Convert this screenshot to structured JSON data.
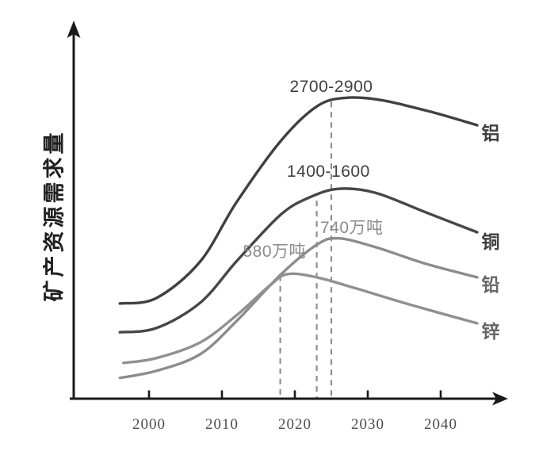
{
  "chart_data": {
    "type": "line",
    "title": "",
    "y_axis_label": "矿产资源需求量",
    "x_ticks": [
      "2000",
      "2010",
      "2020",
      "2030",
      "2040"
    ],
    "x_range": [
      1995.5,
      2046.5
    ],
    "y_range": [
      0,
      105
    ],
    "grid": false,
    "legend_position": "labels-at-curve-ends-right",
    "series": [
      {
        "name": "铝",
        "color": "#404040",
        "label_color": "#3f3f3f",
        "peak_annotation": "2700-2900",
        "points": [
          [
            1996,
            29.8
          ],
          [
            2001,
            31.5
          ],
          [
            2007,
            42.9
          ],
          [
            2012,
            61.5
          ],
          [
            2018,
            80.5
          ],
          [
            2023,
            91.5
          ],
          [
            2027,
            94.2
          ],
          [
            2032,
            93.4
          ],
          [
            2039,
            89.6
          ],
          [
            2045,
            85.6
          ]
        ]
      },
      {
        "name": "铜",
        "color": "#474747",
        "label_color": "#3f3f3f",
        "peak_annotation": "1400-1600",
        "points": [
          [
            1996,
            20.8
          ],
          [
            2001,
            22.1
          ],
          [
            2007,
            30.0
          ],
          [
            2012,
            43.0
          ],
          [
            2018,
            57.5
          ],
          [
            2022,
            63.0
          ],
          [
            2026,
            65.7
          ],
          [
            2031,
            64.5
          ],
          [
            2038,
            58.3
          ],
          [
            2045,
            52.1
          ]
        ]
      },
      {
        "name": "铅",
        "color": "#8c8c8c",
        "label_color": "#666666",
        "peak_annotation": "740万吨",
        "points": [
          [
            1996,
            6.5
          ],
          [
            2001,
            8.7
          ],
          [
            2007,
            13.9
          ],
          [
            2012,
            24.3
          ],
          [
            2018,
            38.7
          ],
          [
            2023,
            48.2
          ],
          [
            2026,
            50.2
          ],
          [
            2031,
            47.5
          ],
          [
            2038,
            42.2
          ],
          [
            2045,
            38.0
          ]
        ]
      },
      {
        "name": "锌",
        "color": "#909090",
        "label_color": "#666666",
        "peak_annotation": "580万吨",
        "points": [
          [
            1996.5,
            11.2
          ],
          [
            2001,
            12.7
          ],
          [
            2007,
            17.6
          ],
          [
            2012,
            26.1
          ],
          [
            2016.5,
            35.3
          ],
          [
            2019,
            39.0
          ],
          [
            2023,
            38.0
          ],
          [
            2028,
            34.8
          ],
          [
            2036,
            29.3
          ],
          [
            2045,
            23.6
          ]
        ]
      }
    ],
    "peak_markers": [
      {
        "year": 2018,
        "top_value": 38.5
      },
      {
        "year": 2023,
        "top_value": 62.0
      },
      {
        "year": 2025,
        "top_value": 93.0
      }
    ],
    "annotations": [
      {
        "text": "2700-2900",
        "year": 2025.0,
        "value": 97.5,
        "color": "#3f3f3f"
      },
      {
        "text": "1400-1600",
        "year": 2024.6,
        "value": 71.0,
        "color": "#3f3f3f"
      },
      {
        "text": "740万吨",
        "year": 2027.8,
        "value": 53.8,
        "color": "#8b8b8b"
      },
      {
        "text": "580万吨",
        "year": 2017.2,
        "value": 46.4,
        "color": "#8b8b8b"
      }
    ],
    "axis_color": "#1a1a1a",
    "dash_color": "#8f8f8f"
  }
}
